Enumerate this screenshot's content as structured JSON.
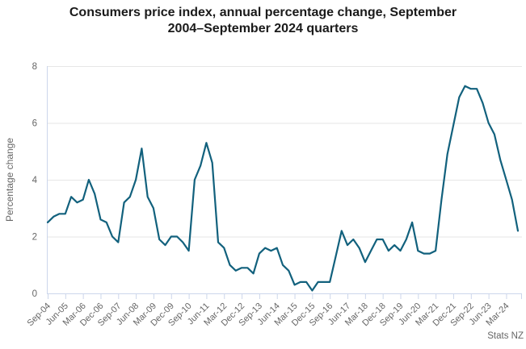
{
  "title_lines": [
    "Consumers price index, annual percentage change, September",
    "2004–September 2024 quarters"
  ],
  "source": "Stats NZ",
  "colors": {
    "line": "#12617d",
    "gridline": "#e6e6e6",
    "axis": "#ccd6eb",
    "label_text": "#666666",
    "title_text": "#1a1a1a"
  },
  "chart_data": {
    "type": "line",
    "title": "Consumers price index, annual percentage change, September 2004–September 2024 quarters",
    "xlabel": "",
    "ylabel": "Percentage change",
    "ylim": [
      0,
      8
    ],
    "y_ticks": [
      0,
      2,
      4,
      6,
      8
    ],
    "grid": "horizontal",
    "legend": "none",
    "x_tick_labels": [
      "Sep-04",
      "Jun-05",
      "Mar-06",
      "Dec-06",
      "Sep-07",
      "Jun-08",
      "Mar-09",
      "Dec-09",
      "Sep-10",
      "Jun-11",
      "Mar-12",
      "Dec-12",
      "Sep-13",
      "Jun-14",
      "Mar-15",
      "Dec-15",
      "Sep-16",
      "Jun-17",
      "Mar-18",
      "Dec-18",
      "Sep-19",
      "Jun-20",
      "Mar-21",
      "Dec-21",
      "Sep-22",
      "Jun-23",
      "Mar-24"
    ],
    "x_tick_interval": 3,
    "x": [
      "Sep-04",
      "Dec-04",
      "Mar-05",
      "Jun-05",
      "Sep-05",
      "Dec-05",
      "Mar-06",
      "Jun-06",
      "Sep-06",
      "Dec-06",
      "Mar-07",
      "Jun-07",
      "Sep-07",
      "Dec-07",
      "Mar-08",
      "Jun-08",
      "Sep-08",
      "Dec-08",
      "Mar-09",
      "Jun-09",
      "Sep-09",
      "Dec-09",
      "Mar-10",
      "Jun-10",
      "Sep-10",
      "Dec-10",
      "Mar-11",
      "Jun-11",
      "Sep-11",
      "Dec-11",
      "Mar-12",
      "Jun-12",
      "Sep-12",
      "Dec-12",
      "Mar-13",
      "Jun-13",
      "Sep-13",
      "Dec-13",
      "Mar-14",
      "Jun-14",
      "Sep-14",
      "Dec-14",
      "Mar-15",
      "Jun-15",
      "Sep-15",
      "Dec-15",
      "Mar-16",
      "Jun-16",
      "Sep-16",
      "Dec-16",
      "Mar-17",
      "Jun-17",
      "Sep-17",
      "Dec-17",
      "Mar-18",
      "Jun-18",
      "Sep-18",
      "Dec-18",
      "Mar-19",
      "Jun-19",
      "Sep-19",
      "Dec-19",
      "Mar-20",
      "Jun-20",
      "Sep-20",
      "Dec-20",
      "Mar-21",
      "Jun-21",
      "Sep-21",
      "Dec-21",
      "Mar-22",
      "Jun-22",
      "Sep-22",
      "Dec-22",
      "Mar-23",
      "Jun-23",
      "Sep-23",
      "Dec-23",
      "Mar-24",
      "Jun-24",
      "Sep-24"
    ],
    "series": [
      {
        "name": "Consumers price index annual percentage change",
        "values": [
          2.5,
          2.7,
          2.8,
          2.8,
          3.4,
          3.2,
          3.3,
          4.0,
          3.5,
          2.6,
          2.5,
          2.0,
          1.8,
          3.2,
          3.4,
          4.0,
          5.1,
          3.4,
          3.0,
          1.9,
          1.7,
          2.0,
          2.0,
          1.8,
          1.5,
          4.0,
          4.5,
          5.3,
          4.6,
          1.8,
          1.6,
          1.0,
          0.8,
          0.9,
          0.9,
          0.7,
          1.4,
          1.6,
          1.5,
          1.6,
          1.0,
          0.8,
          0.3,
          0.4,
          0.4,
          0.1,
          0.4,
          0.4,
          0.4,
          1.3,
          2.2,
          1.7,
          1.9,
          1.6,
          1.1,
          1.5,
          1.9,
          1.9,
          1.5,
          1.7,
          1.5,
          1.9,
          2.5,
          1.5,
          1.4,
          1.4,
          1.5,
          3.3,
          4.9,
          5.9,
          6.9,
          7.3,
          7.2,
          7.2,
          6.7,
          6.0,
          5.6,
          4.7,
          4.0,
          3.3,
          2.2
        ]
      }
    ]
  }
}
